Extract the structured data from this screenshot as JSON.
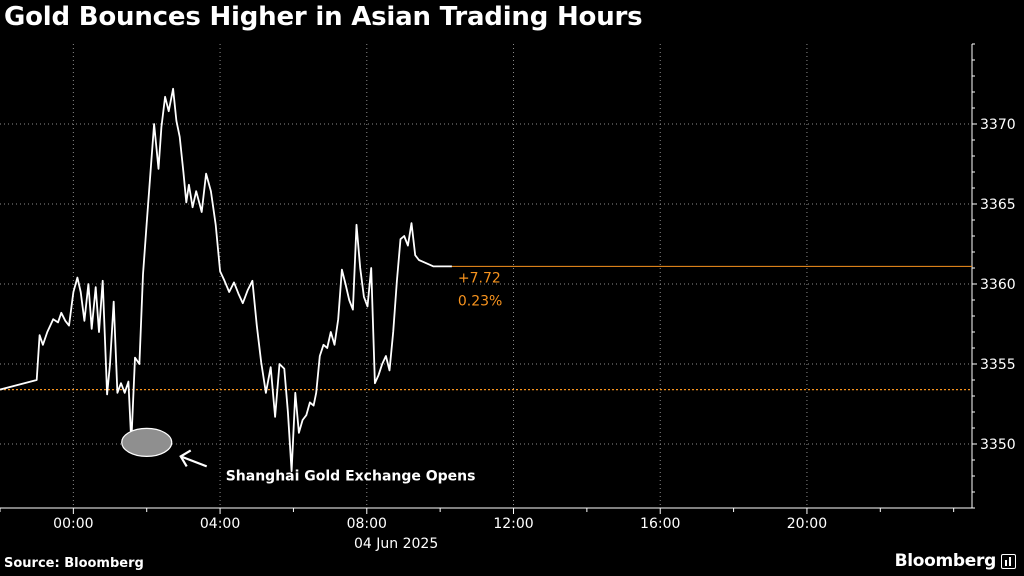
{
  "title": "Gold Bounces Higher in Asian Trading Hours",
  "source": "Source: Bloomberg",
  "brand": "Bloomberg",
  "colors": {
    "background": "#000000",
    "line": "#ffffff",
    "accent": "#f7931e",
    "grid": "#8c8c8c",
    "ellipse": "#8f8f8f"
  },
  "chart_data": {
    "type": "line",
    "title": "Gold Bounces Higher in Asian Trading Hours",
    "xlabel": "04 Jun 2025",
    "ylabel": "",
    "x_ticks": [
      "00:00",
      "04:00",
      "08:00",
      "12:00",
      "16:00",
      "20:00"
    ],
    "x_tick_hours": [
      0,
      4,
      8,
      12,
      16,
      20
    ],
    "xlim": [
      -2.0,
      24.5
    ],
    "y_ticks": [
      3350,
      3355,
      3360,
      3365,
      3370
    ],
    "ylim": [
      3346.0,
      3375.0
    ],
    "y_axis_side": "right",
    "grid": "dotted",
    "reference_level": 3353.4,
    "last_value": 3361.1,
    "change": "+7.72",
    "change_pct": "0.23%",
    "annotation": {
      "text": "Shanghai Gold Exchange Opens",
      "x": 2.0,
      "y": 3350.1
    },
    "series": [
      {
        "name": "",
        "x": [
          -2.0,
          -1.0,
          -0.92,
          -0.83,
          -0.71,
          -0.55,
          -0.42,
          -0.33,
          -0.22,
          -0.12,
          0.0,
          0.11,
          0.2,
          0.3,
          0.41,
          0.5,
          0.61,
          0.7,
          0.8,
          0.92,
          1.0,
          1.1,
          1.2,
          1.3,
          1.4,
          1.5,
          1.58,
          1.68,
          1.8,
          1.9,
          2.0,
          2.1,
          2.2,
          2.32,
          2.4,
          2.5,
          2.6,
          2.72,
          2.81,
          2.9,
          3.0,
          3.08,
          3.15,
          3.25,
          3.35,
          3.5,
          3.62,
          3.75,
          3.88,
          4.0,
          4.12,
          4.25,
          4.38,
          4.5,
          4.62,
          4.75,
          4.88,
          5.0,
          5.12,
          5.25,
          5.38,
          5.5,
          5.62,
          5.75,
          5.85,
          5.95,
          6.05,
          6.15,
          6.25,
          6.35,
          6.45,
          6.55,
          6.62,
          6.72,
          6.82,
          6.92,
          7.02,
          7.12,
          7.22,
          7.32,
          7.42,
          7.52,
          7.62,
          7.72,
          7.82,
          7.92,
          8.02,
          8.12,
          8.22,
          8.32,
          8.42,
          8.52,
          8.62,
          8.72,
          8.82,
          8.92,
          9.02,
          9.12,
          9.22,
          9.32,
          9.42,
          9.52,
          9.62,
          9.72,
          9.82,
          9.92,
          10.02,
          10.12,
          10.22,
          10.32
        ],
        "y": [
          3353.4,
          3354.0,
          3356.8,
          3356.2,
          3357.0,
          3357.8,
          3357.6,
          3358.2,
          3357.7,
          3357.4,
          3359.5,
          3360.4,
          3359.5,
          3357.7,
          3360.0,
          3357.2,
          3359.8,
          3357.0,
          3360.2,
          3353.1,
          3355.0,
          3358.9,
          3353.2,
          3353.8,
          3353.2,
          3353.9,
          3350.1,
          3355.4,
          3355.0,
          3360.6,
          3363.8,
          3366.9,
          3370.0,
          3367.2,
          3369.8,
          3371.7,
          3370.8,
          3372.2,
          3370.2,
          3369.2,
          3367.0,
          3365.1,
          3366.2,
          3364.8,
          3365.8,
          3364.5,
          3366.9,
          3365.8,
          3363.7,
          3360.8,
          3360.2,
          3359.5,
          3360.1,
          3359.4,
          3358.8,
          3359.6,
          3360.2,
          3357.4,
          3355.1,
          3353.2,
          3354.8,
          3351.7,
          3355.0,
          3354.7,
          3352.0,
          3348.3,
          3353.2,
          3350.7,
          3351.5,
          3351.8,
          3352.6,
          3352.4,
          3353.2,
          3355.5,
          3356.2,
          3356.0,
          3357.0,
          3356.2,
          3357.8,
          3360.9,
          3360.0,
          3359.0,
          3358.4,
          3363.7,
          3361.0,
          3359.2,
          3358.6,
          3361.0,
          3353.8,
          3354.3,
          3355.0,
          3355.5,
          3354.6,
          3357.0,
          3360.2,
          3362.8,
          3363.0,
          3362.4,
          3363.8,
          3361.8,
          3361.5,
          3361.4,
          3361.3,
          3361.2,
          3361.1,
          3361.1,
          3361.1,
          3361.1,
          3361.1,
          3361.1
        ]
      }
    ]
  }
}
